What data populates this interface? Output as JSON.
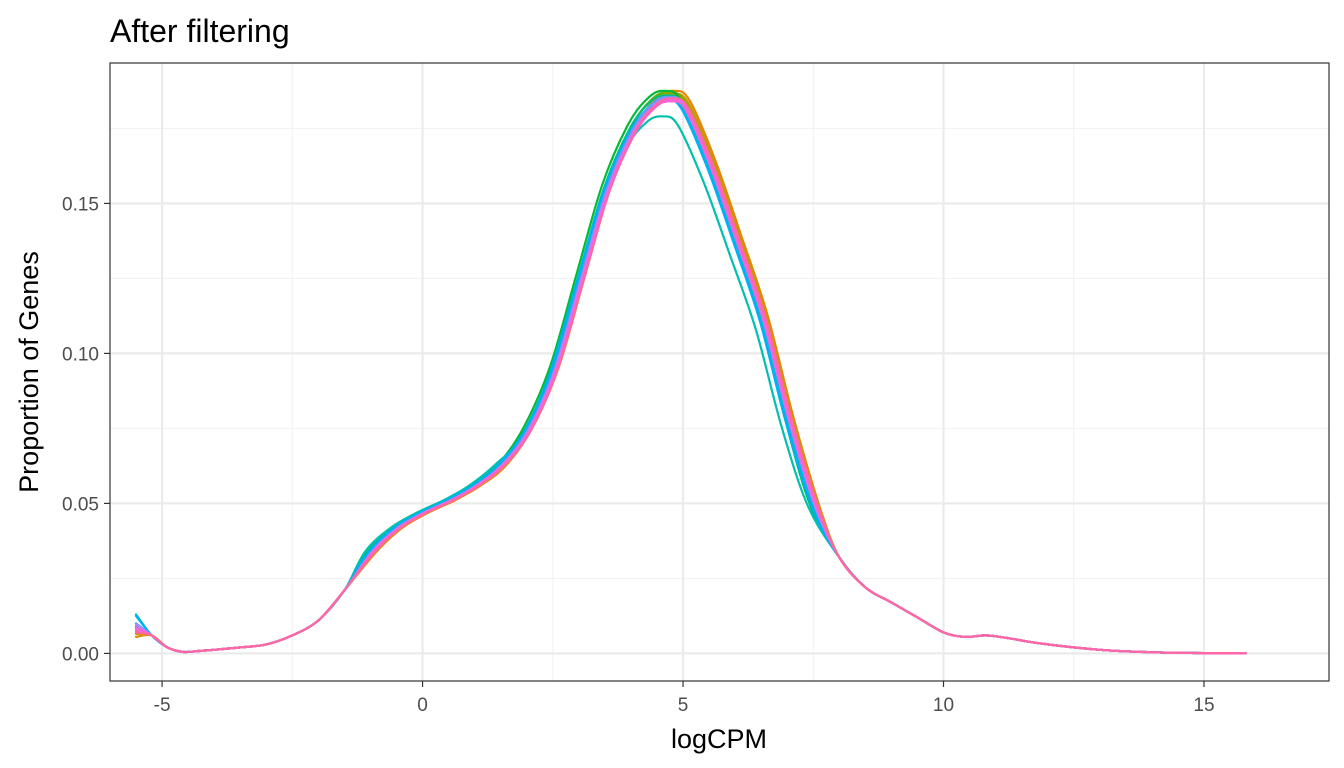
{
  "chart_data": {
    "type": "line",
    "title": "After filtering",
    "xlabel": "logCPM",
    "ylabel": "Proportion of Genes",
    "xlim": [
      -6.0,
      17.4
    ],
    "ylim": [
      -0.0092,
      0.1968
    ],
    "x_ticks": [
      -5,
      0,
      5,
      10,
      15
    ],
    "x_tick_labels": [
      "-5",
      "0",
      "5",
      "10",
      "15"
    ],
    "x_minor_ticks": [
      -2.5,
      2.5,
      7.5,
      12.5
    ],
    "y_ticks": [
      0.0,
      0.05,
      0.1,
      0.15
    ],
    "y_tick_labels": [
      "0.00",
      "0.05",
      "0.10",
      "0.15"
    ],
    "y_minor_ticks": [
      0.025,
      0.075,
      0.125,
      0.175
    ],
    "grid": true,
    "legend": "none",
    "base_curve": {
      "x": [
        -5.5,
        -5.2,
        -4.9,
        -4.6,
        -4.3,
        -4.0,
        -3.5,
        -3.0,
        -2.5,
        -2.0,
        -1.5,
        -1.0,
        -0.5,
        0.0,
        0.5,
        1.0,
        1.5,
        2.0,
        2.5,
        3.0,
        3.5,
        4.0,
        4.4,
        4.7,
        5.0,
        5.5,
        6.0,
        6.5,
        7.0,
        7.5,
        8.0,
        8.5,
        9.0,
        9.5,
        10.0,
        10.4,
        10.8,
        11.2,
        11.6,
        12.0,
        12.5,
        13.0,
        13.5,
        14.0,
        14.5,
        15.0,
        15.5,
        15.8
      ],
      "y": [
        0.009,
        0.006,
        0.002,
        0.0005,
        0.0008,
        0.0012,
        0.002,
        0.003,
        0.006,
        0.011,
        0.021,
        0.034,
        0.042,
        0.047,
        0.051,
        0.056,
        0.063,
        0.075,
        0.095,
        0.125,
        0.155,
        0.175,
        0.184,
        0.186,
        0.183,
        0.163,
        0.138,
        0.112,
        0.078,
        0.049,
        0.032,
        0.022,
        0.017,
        0.012,
        0.007,
        0.0055,
        0.006,
        0.0052,
        0.004,
        0.003,
        0.002,
        0.0012,
        0.0007,
        0.0004,
        0.0002,
        0.0001,
        0.0001,
        0.0
      ]
    },
    "series": [
      {
        "color": "#F8766D",
        "peak": 0.1855,
        "shift": 0.05,
        "start": 0.0075
      },
      {
        "color": "#E58700",
        "peak": 0.1875,
        "shift": 0.12,
        "start": 0.0055
      },
      {
        "color": "#C99800",
        "peak": 0.1865,
        "shift": 0.1,
        "start": 0.0065
      },
      {
        "color": "#A3A500",
        "peak": 0.186,
        "shift": 0.08,
        "start": 0.007
      },
      {
        "color": "#6BB100",
        "peak": 0.187,
        "shift": 0.02,
        "start": 0.008
      },
      {
        "color": "#00BA38",
        "peak": 0.1875,
        "shift": -0.05,
        "start": 0.0085
      },
      {
        "color": "#00BF7D",
        "peak": 0.186,
        "shift": -0.02,
        "start": 0.009
      },
      {
        "color": "#00C0AF",
        "peak": 0.179,
        "shift": -0.1,
        "start": 0.01
      },
      {
        "color": "#00BCD8",
        "peak": 0.185,
        "shift": 0.0,
        "start": 0.013
      },
      {
        "color": "#00B0F6",
        "peak": 0.1845,
        "shift": -0.03,
        "start": 0.0125
      },
      {
        "color": "#619CFF",
        "peak": 0.1855,
        "shift": 0.03,
        "start": 0.01
      },
      {
        "color": "#B983FF",
        "peak": 0.185,
        "shift": 0.06,
        "start": 0.0095
      },
      {
        "color": "#E76BF3",
        "peak": 0.1845,
        "shift": 0.04,
        "start": 0.008
      },
      {
        "color": "#FD61D1",
        "peak": 0.184,
        "shift": 0.07,
        "start": 0.0085
      },
      {
        "color": "#FF67A4",
        "peak": 0.185,
        "shift": 0.09,
        "start": 0.007
      }
    ]
  }
}
